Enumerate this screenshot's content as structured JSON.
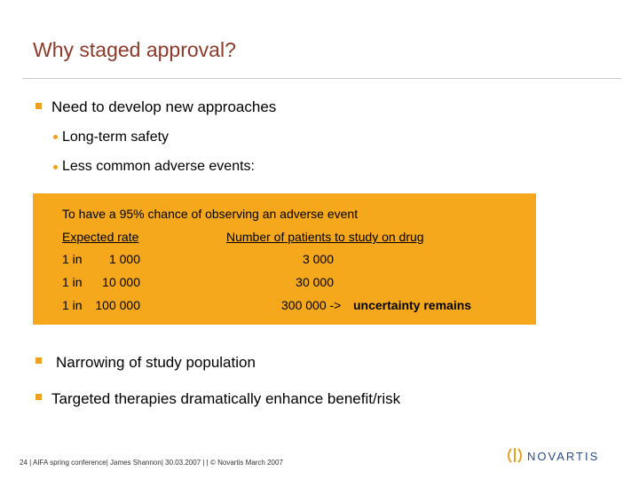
{
  "header": {
    "title": "Why staged approval?"
  },
  "bullets": [
    {
      "text": "Need to develop new approaches",
      "subs": [
        "Long-term safety",
        "Less common adverse events:"
      ]
    },
    {
      "text": "Narrowing of study population"
    },
    {
      "text": "Targeted therapies dramatically enhance benefit/risk"
    }
  ],
  "box": {
    "caption": "To have a 95% chance of observing an adverse event",
    "headers": [
      "Expected rate",
      "Number of patients to study on drug"
    ],
    "rows": [
      [
        "1 in",
        "1 000",
        "3 000"
      ],
      [
        "1 in",
        "10 000",
        "30 000"
      ],
      [
        "1 in",
        "100 000",
        "300 000 ->"
      ]
    ],
    "note": "uncertainty remains"
  },
  "footer": {
    "text": "24 | AIFA spring conference| James Shannon| 30.03.2007 | | © Novartis March 2007",
    "logo": "NOVARTIS"
  }
}
